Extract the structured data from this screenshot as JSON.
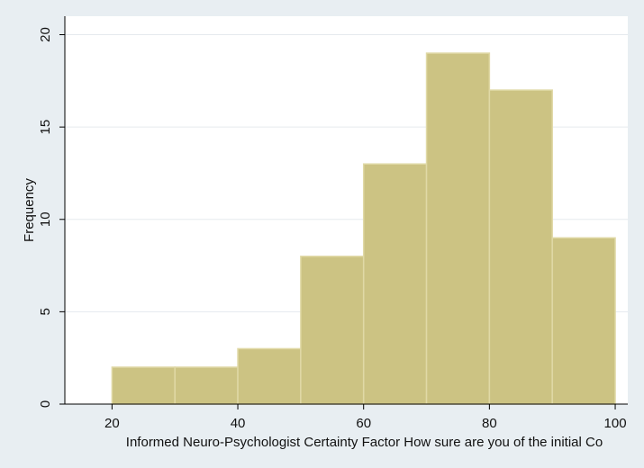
{
  "chart_data": {
    "type": "bar",
    "histogram": true,
    "bins": [
      {
        "start": 20,
        "end": 30,
        "frequency": 2
      },
      {
        "start": 30,
        "end": 40,
        "frequency": 2
      },
      {
        "start": 40,
        "end": 50,
        "frequency": 3
      },
      {
        "start": 50,
        "end": 60,
        "frequency": 8
      },
      {
        "start": 60,
        "end": 70,
        "frequency": 13
      },
      {
        "start": 70,
        "end": 80,
        "frequency": 19
      },
      {
        "start": 80,
        "end": 90,
        "frequency": 17
      },
      {
        "start": 90,
        "end": 100,
        "frequency": 9
      }
    ],
    "xlabel": "Informed Neuro-Psychologist Certainty Factor  How sure are you of the initial Co",
    "ylabel": "Frequency",
    "xticks": [
      20,
      40,
      60,
      80,
      100
    ],
    "yticks": [
      0,
      5,
      10,
      15,
      20
    ],
    "xlim": [
      12.5,
      102
    ],
    "ylim": [
      0,
      21
    ],
    "grid": "horizontal",
    "colors": {
      "bar_fill": "#ccc383",
      "bar_stroke": "#e0d9a6",
      "background_outer": "#e8eef2",
      "plot_background": "#ffffff",
      "grid": "#e5eaee",
      "axis": "#000000"
    }
  }
}
